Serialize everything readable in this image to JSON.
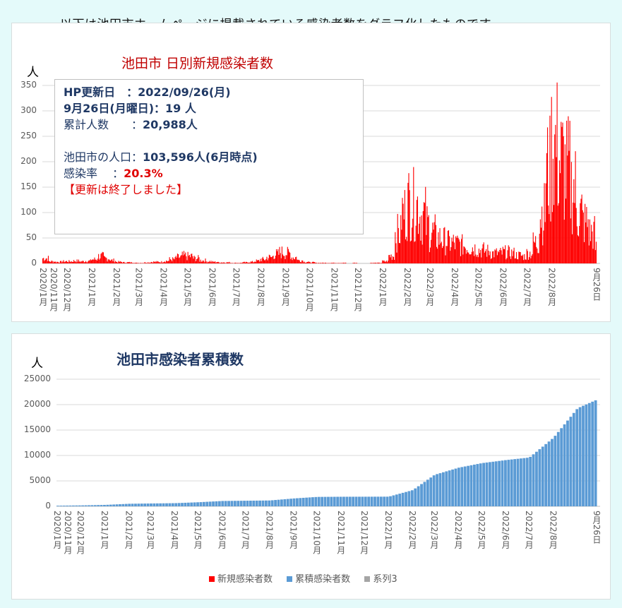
{
  "headline": "以下は池田市ホームページに掲載されている感染者数をグラフ化したものです。",
  "info_box": {
    "line1_label": "HP更新日　：",
    "line1_value": "2022/09/26(月)",
    "line2_label": "9月26日(月曜日)：",
    "line2_value": "19 人",
    "line3_label": "累計人数　　：",
    "line3_value": "20,988人",
    "line4_label": "池田市の人口：",
    "line4_value": "103,596人(6月時点)",
    "line5_label": "感染率　 ：",
    "line5_value": "20.3%",
    "line6": "【更新は終了しました】"
  },
  "colors": {
    "daily": "#ff0000",
    "cumulative": "#5b9bd5",
    "series3": "#a5a5a5"
  },
  "chart_data": [
    {
      "type": "bar",
      "title": "池田市 日別新規感染者数",
      "ylabel": "人",
      "ylim": [
        0,
        350
      ],
      "yticks": [
        "0",
        "50",
        "100",
        "150",
        "200",
        "250",
        "300",
        "350"
      ],
      "start_date": "2020-11-01",
      "end_date": "2022-09-26",
      "x_labels": [
        {
          "label": "2020/1月",
          "date": "2020-11-01"
        },
        {
          "label": "2020/11月",
          "date": "2020-11-01"
        },
        {
          "label": "2020/12月",
          "date": "2020-12-01"
        },
        {
          "label": "2021/1月",
          "date": "2021-01-01"
        },
        {
          "label": "2021/2月",
          "date": "2021-02-01"
        },
        {
          "label": "2021/3月",
          "date": "2021-03-01"
        },
        {
          "label": "2021/4月",
          "date": "2021-04-01"
        },
        {
          "label": "2021/5月",
          "date": "2021-05-01"
        },
        {
          "label": "2021/6月",
          "date": "2021-06-01"
        },
        {
          "label": "2021/7月",
          "date": "2021-07-01"
        },
        {
          "label": "2021/8月",
          "date": "2021-08-01"
        },
        {
          "label": "2021/9月",
          "date": "2021-09-01"
        },
        {
          "label": "2021/10月",
          "date": "2021-10-01"
        },
        {
          "label": "2021/11月",
          "date": "2021-11-01"
        },
        {
          "label": "2021/12月",
          "date": "2021-12-01"
        },
        {
          "label": "2022/1月",
          "date": "2022-01-01"
        },
        {
          "label": "2022/2月",
          "date": "2022-02-01"
        },
        {
          "label": "2022/3月",
          "date": "2022-03-01"
        },
        {
          "label": "2022/4月",
          "date": "2022-04-01"
        },
        {
          "label": "2022/5月",
          "date": "2022-05-01"
        },
        {
          "label": "2022/6月",
          "date": "2022-06-01"
        },
        {
          "label": "2022/7月",
          "date": "2022-07-01"
        },
        {
          "label": "2022/8月",
          "date": "2022-08-01"
        },
        {
          "label": "9月26日",
          "date": "2022-09-26"
        }
      ],
      "weekly_level_by_month": [
        {
          "month": "2020-11",
          "levels": [
            10,
            4,
            3,
            4
          ]
        },
        {
          "month": "2020-12",
          "levels": [
            4,
            5,
            4,
            5
          ]
        },
        {
          "month": "2021-01",
          "levels": [
            8,
            14,
            10,
            6
          ]
        },
        {
          "month": "2021-02",
          "levels": [
            3,
            2,
            2,
            1
          ]
        },
        {
          "month": "2021-03",
          "levels": [
            1,
            2,
            3,
            3
          ]
        },
        {
          "month": "2021-04",
          "levels": [
            5,
            8,
            12,
            15
          ]
        },
        {
          "month": "2021-05",
          "levels": [
            14,
            10,
            6,
            4
          ]
        },
        {
          "month": "2021-06",
          "levels": [
            3,
            2,
            2,
            1
          ]
        },
        {
          "month": "2021-07",
          "levels": [
            1,
            2,
            3,
            5
          ]
        },
        {
          "month": "2021-08",
          "levels": [
            8,
            12,
            18,
            22
          ]
        },
        {
          "month": "2021-09",
          "levels": [
            20,
            12,
            6,
            3
          ]
        },
        {
          "month": "2021-10",
          "levels": [
            2,
            1,
            1,
            1
          ]
        },
        {
          "month": "2021-11",
          "levels": [
            1,
            1,
            0,
            1
          ]
        },
        {
          "month": "2021-12",
          "levels": [
            0,
            0,
            1,
            1
          ]
        },
        {
          "month": "2022-01",
          "levels": [
            4,
            15,
            60,
            100
          ]
        },
        {
          "month": "2022-02",
          "levels": [
            120,
            115,
            95,
            75
          ]
        },
        {
          "month": "2022-03",
          "levels": [
            60,
            50,
            45,
            40
          ]
        },
        {
          "month": "2022-04",
          "levels": [
            38,
            35,
            32,
            30
          ]
        },
        {
          "month": "2022-05",
          "levels": [
            26,
            24,
            20,
            20
          ]
        },
        {
          "month": "2022-06",
          "levels": [
            22,
            20,
            16,
            14
          ]
        },
        {
          "month": "2022-07",
          "levels": [
            20,
            40,
            100,
            180
          ]
        },
        {
          "month": "2022-08",
          "levels": [
            230,
            200,
            180,
            150
          ]
        },
        {
          "month": "2022-09",
          "levels": [
            100,
            80,
            60,
            30
          ]
        }
      ]
    },
    {
      "type": "bar",
      "title": "池田市感染者累積数",
      "ylabel": "人",
      "ylim": [
        0,
        25000
      ],
      "yticks": [
        "0",
        "5000",
        "10000",
        "15000",
        "20000",
        "25000"
      ],
      "start_date": "2020-11-01",
      "end_date": "2022-09-26",
      "x_labels": [
        {
          "label": "2020/1月",
          "date": "2020-11-01"
        },
        {
          "label": "2020/11月",
          "date": "2020-11-01"
        },
        {
          "label": "2020/12月",
          "date": "2020-12-01"
        },
        {
          "label": "2021/1月",
          "date": "2021-01-01"
        },
        {
          "label": "2021/2月",
          "date": "2021-02-01"
        },
        {
          "label": "2021/3月",
          "date": "2021-03-01"
        },
        {
          "label": "2021/4月",
          "date": "2021-04-01"
        },
        {
          "label": "2021/5月",
          "date": "2021-05-01"
        },
        {
          "label": "2021/6月",
          "date": "2021-06-01"
        },
        {
          "label": "2021/7月",
          "date": "2021-07-01"
        },
        {
          "label": "2021/8月",
          "date": "2021-08-01"
        },
        {
          "label": "2021/9月",
          "date": "2021-09-01"
        },
        {
          "label": "2021/10月",
          "date": "2021-10-01"
        },
        {
          "label": "2021/11月",
          "date": "2021-11-01"
        },
        {
          "label": "2021/12月",
          "date": "2021-12-01"
        },
        {
          "label": "2022/1月",
          "date": "2022-01-01"
        },
        {
          "label": "2022/2月",
          "date": "2022-02-01"
        },
        {
          "label": "2022/3月",
          "date": "2022-03-01"
        },
        {
          "label": "2022/4月",
          "date": "2022-04-01"
        },
        {
          "label": "2022/5月",
          "date": "2022-05-01"
        },
        {
          "label": "2022/6月",
          "date": "2022-06-01"
        },
        {
          "label": "2022/7月",
          "date": "2022-07-01"
        },
        {
          "label": "2022/8月",
          "date": "2022-08-01"
        },
        {
          "label": "9月26日",
          "date": "2022-09-26"
        }
      ],
      "cumulative_points": [
        {
          "date": "2020-11-01",
          "value": 120
        },
        {
          "date": "2020-12-01",
          "value": 180
        },
        {
          "date": "2021-01-01",
          "value": 280
        },
        {
          "date": "2021-02-01",
          "value": 500
        },
        {
          "date": "2021-03-01",
          "value": 560
        },
        {
          "date": "2021-04-01",
          "value": 620
        },
        {
          "date": "2021-05-01",
          "value": 800
        },
        {
          "date": "2021-06-01",
          "value": 1050
        },
        {
          "date": "2021-07-01",
          "value": 1100
        },
        {
          "date": "2021-08-01",
          "value": 1150
        },
        {
          "date": "2021-09-01",
          "value": 1550
        },
        {
          "date": "2021-10-01",
          "value": 1850
        },
        {
          "date": "2021-11-01",
          "value": 1880
        },
        {
          "date": "2021-12-01",
          "value": 1890
        },
        {
          "date": "2022-01-01",
          "value": 1900
        },
        {
          "date": "2022-02-01",
          "value": 3200
        },
        {
          "date": "2022-03-01",
          "value": 6200
        },
        {
          "date": "2022-04-01",
          "value": 7600
        },
        {
          "date": "2022-05-01",
          "value": 8500
        },
        {
          "date": "2022-06-01",
          "value": 9100
        },
        {
          "date": "2022-07-01",
          "value": 9600
        },
        {
          "date": "2022-08-01",
          "value": 13500
        },
        {
          "date": "2022-09-01",
          "value": 19300
        },
        {
          "date": "2022-09-26",
          "value": 20988
        }
      ],
      "legend": [
        "新規感染者数",
        "累積感染者数",
        "系列3"
      ],
      "legend_placement": "bottom"
    }
  ]
}
